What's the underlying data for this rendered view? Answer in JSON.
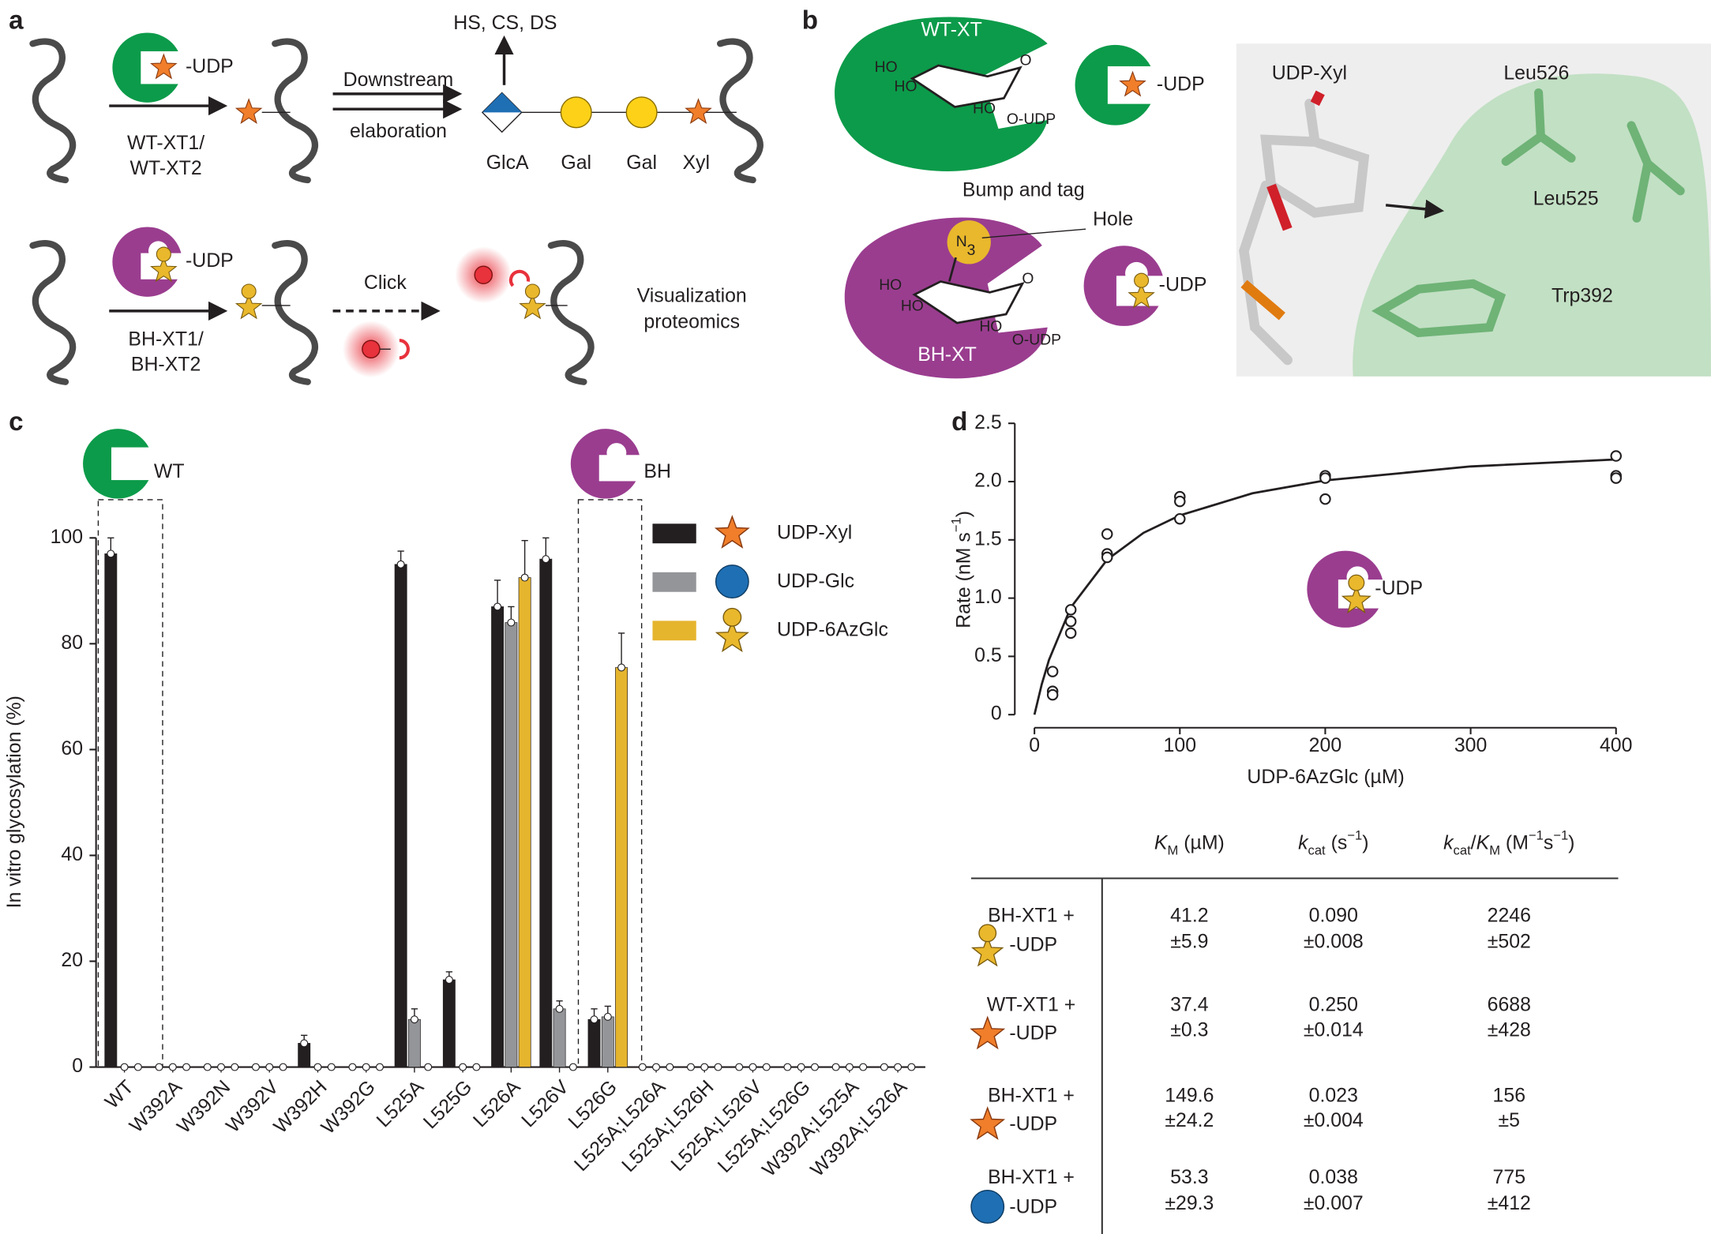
{
  "panels": {
    "a": {
      "label": "a",
      "top": {
        "cofactor": "-UDP",
        "enzyme": [
          "WT-XT1/",
          "WT-XT2"
        ],
        "step": [
          "Downstream",
          "elaboration"
        ],
        "products": "HS, CS, DS",
        "sugars": [
          "GlcA",
          "Gal",
          "Gal",
          "Xyl"
        ]
      },
      "bottom": {
        "cofactor": "-UDP",
        "enzyme": [
          "BH-XT1/",
          "BH-XT2"
        ],
        "step": "Click",
        "outcome": [
          "Visualization",
          "proteomics"
        ]
      }
    },
    "b": {
      "label": "b",
      "wt": {
        "name": "WT-XT",
        "ho": [
          "HO",
          "HO",
          "HO"
        ],
        "ring_o": "O",
        "anomeric": "O-UDP",
        "cofactor": "-UDP"
      },
      "bh": {
        "name": "BH-XT",
        "bump": "Bump and tag",
        "hole": "Hole",
        "azide": "N",
        "azide_sub": "3",
        "ho": [
          "HO",
          "HO",
          "HO"
        ],
        "ring_o": "O",
        "anomeric": "O-UDP",
        "cofactor": "-UDP"
      },
      "structure": {
        "ligand": "UDP-Xyl",
        "residues": [
          "Leu526",
          "Leu525",
          "Trp392"
        ]
      }
    }
  },
  "chart_data": [
    {
      "type": "bar",
      "label": "c",
      "annotations": [
        "WT",
        "BH"
      ],
      "ylabel": "In vitro glycosylation (%)",
      "categories": [
        "WT",
        "W392A",
        "W392N",
        "W392V",
        "W392H",
        "W392G",
        "L525A",
        "L525G",
        "L526A",
        "L526V",
        "L526G",
        "L525A;L526A",
        "L525A;L526H",
        "L525A;L526V",
        "L525A;L526G",
        "W392A;L525A",
        "W392A;L526A"
      ],
      "series": [
        {
          "name": "UDP-Xyl",
          "color": "#231f20",
          "values": [
            97,
            0,
            0,
            0,
            4.5,
            0,
            95,
            16.5,
            87,
            96,
            9,
            0,
            0,
            0,
            0,
            0,
            0
          ],
          "errors": [
            3,
            0,
            0,
            0,
            1.5,
            0,
            2.5,
            1.5,
            5,
            4,
            2,
            0,
            0,
            0,
            0,
            0,
            0
          ]
        },
        {
          "name": "UDP-Glc",
          "color": "#939598",
          "values": [
            0,
            0,
            0,
            0,
            0,
            0,
            9,
            0,
            84,
            11,
            9.5,
            0,
            0,
            0,
            0,
            0,
            0
          ],
          "errors": [
            0,
            0,
            0,
            0,
            0,
            0,
            2,
            0,
            3,
            1.5,
            2,
            0,
            0,
            0,
            0,
            0,
            0
          ]
        },
        {
          "name": "UDP-6AzGlc",
          "color": "#e6b52e",
          "values": [
            0,
            0,
            0,
            0,
            0,
            0,
            0,
            0,
            92.5,
            0,
            75.5,
            0,
            0,
            0,
            0,
            0,
            0
          ],
          "errors": [
            0,
            0,
            0,
            0,
            0,
            0,
            0,
            0,
            7,
            0,
            6.5,
            0,
            0,
            0,
            0,
            0,
            0
          ]
        }
      ],
      "ylim": [
        0,
        100
      ],
      "yticks": [
        0,
        20,
        40,
        60,
        80,
        100
      ],
      "grid": false
    },
    {
      "type": "scatter",
      "label": "d",
      "annotation": "-UDP",
      "xlabel": "UDP-6AzGlc (µM)",
      "ylabel": [
        {
          "text": "Rate (nM s"
        },
        {
          "text": "−1",
          "shift": "super"
        },
        {
          "text": ")"
        }
      ],
      "x": [
        12.5,
        12.5,
        12.5,
        25,
        25,
        25,
        50,
        50,
        50,
        100,
        100,
        100,
        200,
        200,
        200,
        400,
        400,
        400
      ],
      "y": [
        0.37,
        0.2,
        0.17,
        0.9,
        0.8,
        0.7,
        1.55,
        1.38,
        1.35,
        1.87,
        1.83,
        1.68,
        2.05,
        2.03,
        1.85,
        2.22,
        2.05,
        2.03
      ],
      "fit": {
        "x": [
          0,
          5,
          10,
          25,
          50,
          75,
          100,
          150,
          200,
          300,
          400
        ],
        "y": [
          0,
          0.26,
          0.47,
          0.92,
          1.33,
          1.56,
          1.71,
          1.9,
          2.01,
          2.13,
          2.19
        ]
      },
      "color": "#231f20",
      "xlim": [
        0,
        400
      ],
      "ylim": [
        0,
        2.5
      ],
      "xticks": [
        0,
        100,
        200,
        300,
        400
      ],
      "yticks": [
        0,
        0.5,
        {
          "value": 1,
          "label": "1.0"
        },
        1.5,
        {
          "value": 2,
          "label": "2.0"
        },
        2.5
      ]
    }
  ],
  "table": {
    "header": [
      [
        {
          "text": "K",
          "italic": true
        },
        {
          "text": "M",
          "shift": "sub"
        },
        {
          "text": " (µM)"
        }
      ],
      [
        {
          "text": "k",
          "italic": true
        },
        {
          "text": "cat",
          "shift": "sub"
        },
        {
          "text": " (s"
        },
        {
          "text": "−1",
          "shift": "super"
        },
        {
          "text": ")"
        }
      ],
      [
        {
          "text": "k",
          "italic": true
        },
        {
          "text": "cat",
          "shift": "sub"
        },
        {
          "text": "/"
        },
        {
          "text": "K",
          "italic": true
        },
        {
          "text": "M",
          "shift": "sub"
        },
        {
          "text": " (M"
        },
        {
          "text": "−1",
          "shift": "super"
        },
        {
          "text": "s"
        },
        {
          "text": "−1",
          "shift": "super"
        },
        {
          "text": ")"
        }
      ]
    ],
    "rows": [
      {
        "enzyme": "BH-XT1 +",
        "substrate": "-UDP",
        "km": [
          "41.2",
          "±5.9"
        ],
        "kcat": [
          "0.090",
          "±0.008"
        ],
        "eff": [
          "2246",
          "±502"
        ]
      },
      {
        "enzyme": "WT-XT1 +",
        "substrate": "-UDP",
        "km": [
          "37.4",
          "±0.3"
        ],
        "kcat": [
          "0.250",
          "±0.014"
        ],
        "eff": [
          "6688",
          "±428"
        ]
      },
      {
        "enzyme": "BH-XT1 +",
        "substrate": "-UDP",
        "km": [
          "149.6",
          "±24.2"
        ],
        "kcat": [
          "0.023",
          "±0.004"
        ],
        "eff": [
          "156",
          "±5"
        ]
      },
      {
        "enzyme": "BH-XT1 +",
        "substrate": "-UDP",
        "km": [
          "53.3",
          "±29.3"
        ],
        "kcat": [
          "0.038",
          "±0.007"
        ],
        "eff": [
          "775",
          "±412"
        ]
      }
    ]
  }
}
